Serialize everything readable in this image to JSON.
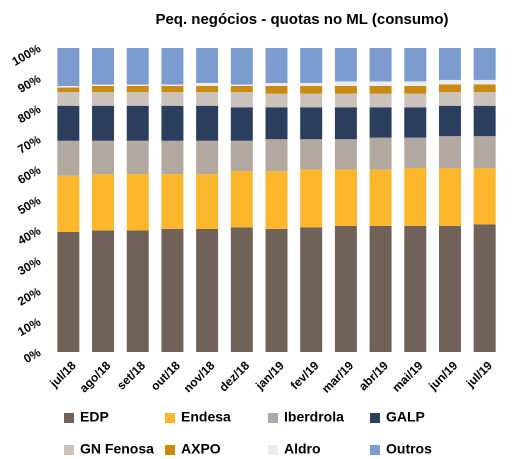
{
  "chart_data": {
    "type": "stacked_bar",
    "title": "Peq. negócios - quotas no ML (consumo)",
    "categories": [
      "jul/18",
      "ago/18",
      "set/18",
      "out/18",
      "nov/18",
      "dez/18",
      "jan/19",
      "fev/19",
      "mar/19",
      "abr/19",
      "mai/19",
      "jun/19",
      "jul/19"
    ],
    "series": [
      {
        "name": "EDP",
        "color": "#706259",
        "values": [
          39.5,
          40,
          40,
          40.5,
          40.5,
          41,
          40.5,
          41,
          41.5,
          41.5,
          41.5,
          41.5,
          42
        ]
      },
      {
        "name": "Endesa",
        "color": "#fbb62c",
        "values": [
          18.5,
          18.5,
          18.5,
          18,
          18,
          18.5,
          19,
          19,
          18.5,
          18.5,
          19,
          19,
          18.5
        ]
      },
      {
        "name": "Iberdrola",
        "color": "#b3a8a0",
        "values": [
          11.5,
          11,
          11,
          11,
          11,
          10,
          10.5,
          10,
          10,
          10.5,
          10,
          10.5,
          10.5
        ]
      },
      {
        "name": "GALP",
        "color": "#2c3e5e",
        "values": [
          11.5,
          11.5,
          11.5,
          11.5,
          11.5,
          11,
          10.5,
          10.5,
          10.5,
          10,
          10,
          10,
          10
        ]
      },
      {
        "name": "GN Fenosa",
        "color": "#cbc2bb",
        "values": [
          4.5,
          4.5,
          4.5,
          4.5,
          4.5,
          5,
          4.5,
          4.5,
          4.5,
          4.5,
          4.5,
          4.5,
          4.5
        ]
      },
      {
        "name": "AXPO",
        "color": "#c98a12",
        "values": [
          1.5,
          2,
          2,
          2,
          2,
          2,
          2.5,
          2.5,
          2.5,
          2.5,
          2.5,
          2.5,
          2.5
        ]
      },
      {
        "name": "Aldro",
        "color": "#ececec",
        "values": [
          0.5,
          0.5,
          0.5,
          0.5,
          1,
          0.5,
          1,
          1,
          1.5,
          1.5,
          1.5,
          1.5,
          1.5
        ]
      },
      {
        "name": "Outros",
        "color": "#7c9bce",
        "values": [
          12.5,
          12,
          12,
          12,
          11.5,
          12,
          11.5,
          11.5,
          11,
          11,
          11,
          10.5,
          10.5
        ]
      }
    ],
    "ylim": [
      0,
      100
    ],
    "yticks": [
      {
        "value": 0,
        "label": "0%"
      },
      {
        "value": 10,
        "label": "10%"
      },
      {
        "value": 20,
        "label": "20%"
      },
      {
        "value": 30,
        "label": "30%"
      },
      {
        "value": 40,
        "label": "40%"
      },
      {
        "value": 50,
        "label": "50%"
      },
      {
        "value": 60,
        "label": "60%"
      },
      {
        "value": 70,
        "label": "70%"
      },
      {
        "value": 80,
        "label": "80%"
      },
      {
        "value": 90,
        "label": "90%"
      },
      {
        "value": 100,
        "label": "100%"
      }
    ],
    "grid": false
  }
}
